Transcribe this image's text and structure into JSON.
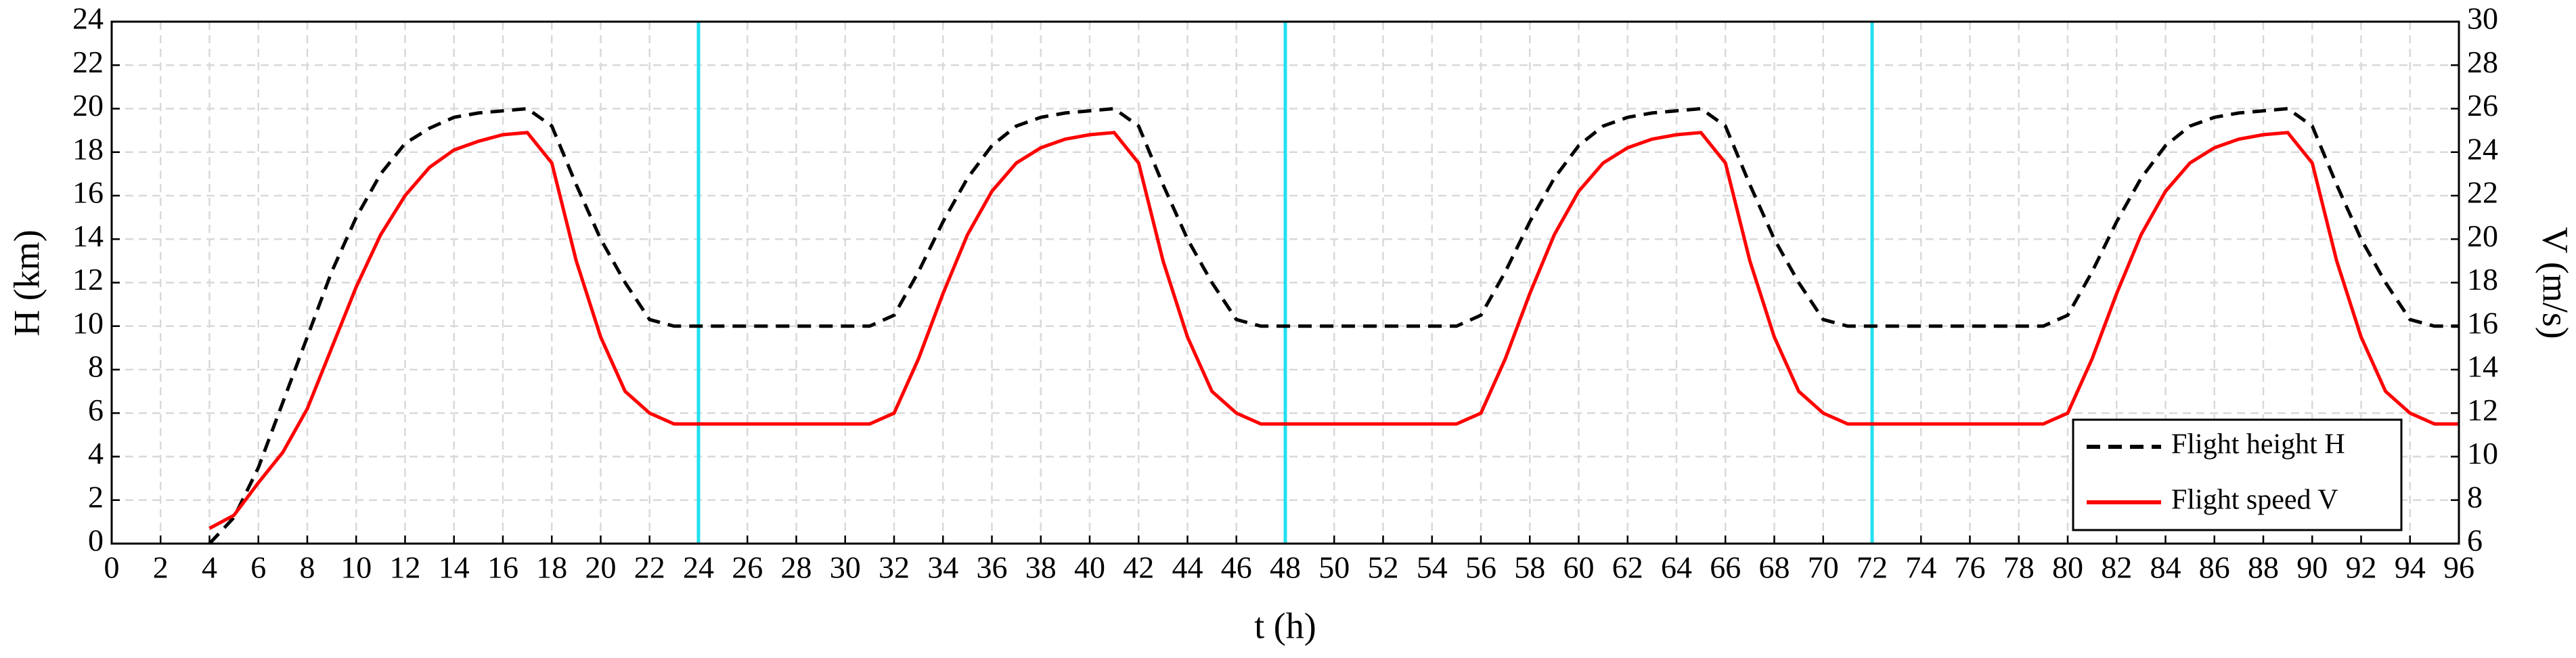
{
  "chart_data": {
    "type": "line",
    "xlabel": "t (h)",
    "ylabel": "H (km)",
    "y2label": "V (m/s)",
    "xlim": [
      0,
      96
    ],
    "xticks": [
      0,
      2,
      4,
      6,
      8,
      10,
      12,
      14,
      16,
      18,
      20,
      22,
      24,
      26,
      28,
      30,
      32,
      34,
      36,
      38,
      40,
      42,
      44,
      46,
      48,
      50,
      52,
      54,
      56,
      58,
      60,
      62,
      64,
      66,
      68,
      70,
      72,
      74,
      76,
      78,
      80,
      82,
      84,
      86,
      88,
      90,
      92,
      94,
      96
    ],
    "ylim": [
      0,
      24
    ],
    "yticks": [
      0,
      2,
      4,
      6,
      8,
      10,
      12,
      14,
      16,
      18,
      20,
      22,
      24
    ],
    "y2lim": [
      6,
      30
    ],
    "y2ticks": [
      6,
      8,
      10,
      12,
      14,
      16,
      18,
      20,
      22,
      24,
      26,
      28,
      30
    ],
    "grid": true,
    "legend": "lower right",
    "vlines": {
      "x": [
        24,
        48,
        72
      ],
      "color": "#22e0f0"
    },
    "x": [
      4,
      5,
      6,
      7,
      8,
      9,
      10,
      11,
      12,
      13,
      14,
      15,
      16,
      17,
      18,
      19,
      20,
      21,
      22,
      23,
      24,
      25,
      26,
      27,
      28,
      29,
      30,
      31,
      32,
      33,
      34,
      35,
      36,
      37,
      38,
      39,
      40,
      41,
      42,
      43,
      44,
      45,
      46,
      47,
      48,
      49,
      50,
      51,
      52,
      53,
      54,
      55,
      56,
      57,
      58,
      59,
      60,
      61,
      62,
      63,
      64,
      65,
      66,
      67,
      68,
      69,
      70,
      71,
      72,
      73,
      74,
      75,
      76,
      77,
      78,
      79,
      80,
      81,
      82,
      83,
      84,
      85,
      86,
      87,
      88,
      89,
      90,
      91,
      92,
      93,
      94,
      95,
      96
    ],
    "series": [
      {
        "name": "Flight height H",
        "color": "#000000",
        "dash": "dashed",
        "values": [
          0,
          1.2,
          3.5,
          6.5,
          9.5,
          12.5,
          15,
          17,
          18.4,
          19.1,
          19.6,
          19.8,
          19.9,
          20,
          19.2,
          16.5,
          14,
          12,
          10.3,
          10,
          10,
          10,
          10,
          10,
          10,
          10,
          10,
          10,
          10.5,
          12.5,
          14.8,
          16.8,
          18.3,
          19.2,
          19.6,
          19.8,
          19.9,
          20,
          19.2,
          16.5,
          14,
          12,
          10.3,
          10,
          10,
          10,
          10,
          10,
          10,
          10,
          10,
          10,
          10.5,
          12.5,
          14.8,
          16.8,
          18.3,
          19.2,
          19.6,
          19.8,
          19.9,
          20,
          19.2,
          16.5,
          14,
          12,
          10.3,
          10,
          10,
          10,
          10,
          10,
          10,
          10,
          10,
          10,
          10.5,
          12.5,
          14.8,
          16.8,
          18.3,
          19.2,
          19.6,
          19.8,
          19.9,
          20,
          19.2,
          16.5,
          14,
          12,
          10.3,
          10,
          10
        ]
      },
      {
        "name": "Flight speed  V",
        "color": "#ff0000",
        "dash": "solid",
        "axis": "y2",
        "values": [
          6.7,
          7.3,
          8.8,
          10.2,
          12.2,
          15,
          17.8,
          20.2,
          22,
          23.3,
          24.1,
          24.5,
          24.8,
          24.9,
          23.5,
          19,
          15.5,
          13,
          12,
          11.5,
          11.5,
          11.5,
          11.5,
          11.5,
          11.5,
          11.5,
          11.5,
          11.5,
          12,
          14.5,
          17.5,
          20.2,
          22.2,
          23.5,
          24.2,
          24.6,
          24.8,
          24.9,
          23.5,
          19,
          15.5,
          13,
          12,
          11.5,
          11.5,
          11.5,
          11.5,
          11.5,
          11.5,
          11.5,
          11.5,
          11.5,
          12,
          14.5,
          17.5,
          20.2,
          22.2,
          23.5,
          24.2,
          24.6,
          24.8,
          24.9,
          23.5,
          19,
          15.5,
          13,
          12,
          11.5,
          11.5,
          11.5,
          11.5,
          11.5,
          11.5,
          11.5,
          11.5,
          11.5,
          12,
          14.5,
          17.5,
          20.2,
          22.2,
          23.5,
          24.2,
          24.6,
          24.8,
          24.9,
          23.5,
          19,
          15.5,
          13,
          12,
          11.5,
          11.5
        ]
      }
    ]
  }
}
